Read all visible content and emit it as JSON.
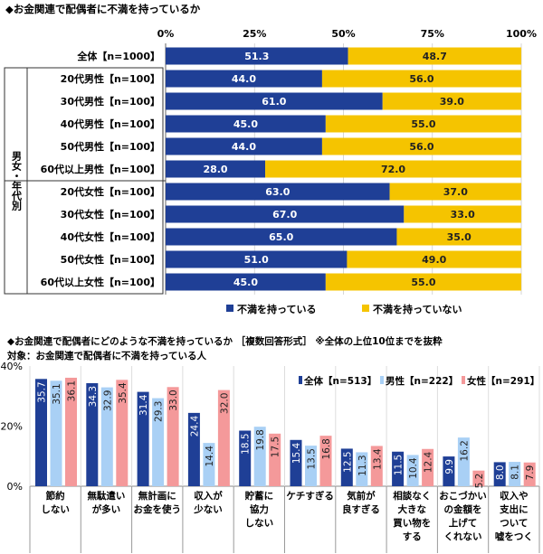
{
  "chart_data": [
    {
      "type": "bar",
      "orientation": "horizontal-stacked",
      "title": "◆お金関連で配偶者に不満を持っているか",
      "xticks": [
        "0%",
        "25%",
        "50%",
        "75%",
        "100%"
      ],
      "xlim": [
        0,
        100
      ],
      "group_label": "男女・年代別",
      "categories": [
        "全体【n=1000】",
        "20代男性【n=100】",
        "30代男性【n=100】",
        "40代男性【n=100】",
        "50代男性【n=100】",
        "60代以上男性【n=100】",
        "20代女性【n=100】",
        "30代女性【n=100】",
        "40代女性【n=100】",
        "50代女性【n=100】",
        "60代以上女性【n=100】"
      ],
      "series": [
        {
          "name": "不満を持っている",
          "color": "#1f3f96",
          "values": [
            51.3,
            44.0,
            61.0,
            45.0,
            44.0,
            28.0,
            63.0,
            67.0,
            65.0,
            51.0,
            45.0
          ],
          "labels": [
            "51.3",
            "44.0",
            "61.0",
            "45.0",
            "44.0",
            "28.0",
            "63.0",
            "67.0",
            "65.0",
            "51.0",
            "45.0"
          ]
        },
        {
          "name": "不満を持っていない",
          "color": "#f5c400",
          "values": [
            48.7,
            56.0,
            39.0,
            55.0,
            56.0,
            72.0,
            37.0,
            33.0,
            35.0,
            49.0,
            55.0
          ],
          "labels": [
            "48.7",
            "56.0",
            "39.0",
            "55.0",
            "56.0",
            "72.0",
            "37.0",
            "33.0",
            "35.0",
            "49.0",
            "55.0"
          ]
        }
      ],
      "legend": "bottom"
    },
    {
      "type": "bar",
      "title": "◆お金関連で配偶者にどのような不満を持っているか ［複数回答形式］ ※全体の上位10位までを抜粋",
      "subtitle": "対象：お金関連で配偶者に不満を持っている人",
      "ylim": [
        0,
        40
      ],
      "yticks": [
        "0%",
        "20%",
        "40%"
      ],
      "categories": [
        "節約\nしない",
        "無駄遣い\nが多い",
        "無計画に\nお金を使う",
        "収入が\n少ない",
        "貯蓄に\n協力\nしない",
        "ケチすぎる",
        "気前が\n良すぎる",
        "相談なく\n大きな\n買い物を\nする",
        "おこづかい\nの金額を\n上げて\nくれない",
        "収入や\n支出に\nついて\n嘘をつく"
      ],
      "series": [
        {
          "name": "全体【n=513】",
          "color": "#1f3f96",
          "text_color": "#ffffff",
          "values": [
            35.7,
            34.3,
            31.4,
            24.4,
            18.5,
            15.4,
            12.5,
            11.5,
            9.9,
            8.0
          ],
          "labels": [
            "35.7",
            "34.3",
            "31.4",
            "24.4",
            "18.5",
            "15.4",
            "12.5",
            "11.5",
            "9.9",
            "8.0"
          ]
        },
        {
          "name": "男性【n=222】",
          "color": "#a9d0f5",
          "text_color": "#222222",
          "values": [
            35.1,
            32.9,
            29.3,
            14.4,
            19.8,
            13.5,
            11.3,
            10.4,
            16.2,
            8.1
          ],
          "labels": [
            "35.1",
            "32.9",
            "29.3",
            "14.4",
            "19.8",
            "13.5",
            "11.3",
            "10.4",
            "16.2",
            "8.1"
          ]
        },
        {
          "name": "女性【n=291】",
          "color": "#f4999a",
          "text_color": "#222222",
          "values": [
            36.1,
            35.4,
            33.0,
            32.0,
            17.5,
            16.8,
            13.4,
            12.4,
            5.2,
            7.9
          ],
          "labels": [
            "36.1",
            "35.4",
            "33.0",
            "32.0",
            "17.5",
            "16.8",
            "13.4",
            "12.4",
            "5.2",
            "7.9"
          ]
        }
      ],
      "legend": "top-right"
    }
  ]
}
